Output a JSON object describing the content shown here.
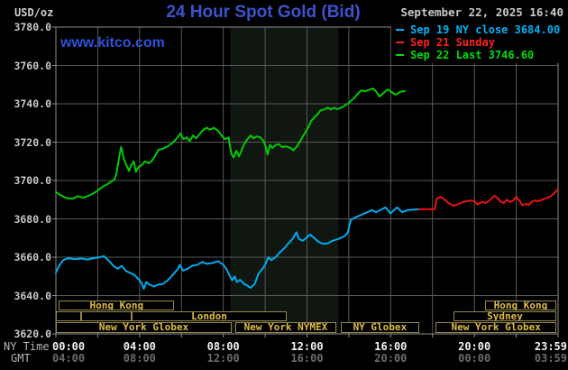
{
  "header": {
    "unit_label": "USD/oz",
    "title": "24 Hour Spot Gold (Bid)",
    "datetime": "September 22, 2025 16:40",
    "watermark": "www.kitco.com",
    "legend": [
      {
        "label": "Sep 19 NY close 3684.00",
        "color": "#00b2f5"
      },
      {
        "label": "Sep 21 Sunday",
        "color": "#ff2020"
      },
      {
        "label": "Sep 22 Last 3746.60",
        "color": "#00dd00"
      }
    ]
  },
  "axes": {
    "ny_caption": "NY Time",
    "gmt_caption": "GMT",
    "ny_ticks": [
      "00:00",
      "04:00",
      "08:00",
      "12:00",
      "16:00",
      "20:00",
      "23:59"
    ],
    "gmt_ticks": [
      "04:00",
      "08:00",
      "12:00",
      "16:00",
      "20:00",
      "00:00",
      "03:59"
    ],
    "tick_hours": [
      0,
      4,
      8,
      12,
      16,
      20,
      24
    ],
    "y_labels": [
      "3780.0",
      "3760.0",
      "3740.0",
      "3720.0",
      "3700.0",
      "3680.0",
      "3660.0",
      "3640.0",
      "3620.0"
    ],
    "y_values": [
      3780,
      3760,
      3740,
      3720,
      3700,
      3680,
      3660,
      3640,
      3620
    ],
    "ny_color": "#f2f2f2",
    "gmt_color": "#6c6c6c"
  },
  "sessions": {
    "border_color": "#96894a",
    "label_color": "#e0bd48",
    "rows": [
      {
        "row": 1,
        "boxes": [
          {
            "start": 0.15,
            "end": 5.65,
            "label": "Hong Kong"
          },
          {
            "start": 20.5,
            "end": 23.92,
            "label": "Hong Kong"
          }
        ]
      },
      {
        "row": 2,
        "boxes": [
          {
            "start": 0,
            "end": 1.2,
            "label": ""
          },
          {
            "start": 1.2,
            "end": 3.62,
            "label": ""
          },
          {
            "start": 3.62,
            "end": 11.03,
            "label": "London"
          },
          {
            "start": 19.0,
            "end": 23.92,
            "label": "Sydney"
          }
        ]
      },
      {
        "row": 3,
        "boxes": [
          {
            "start": 0,
            "end": 8.4,
            "label": "New York Globex"
          },
          {
            "start": 8.57,
            "end": 13.4,
            "label": "New York NYMEX"
          },
          {
            "start": 13.62,
            "end": 17.35,
            "label": "NY Globex"
          },
          {
            "start": 18.15,
            "end": 23.92,
            "label": "New York Globex"
          }
        ]
      }
    ]
  },
  "chart_data": {
    "type": "line",
    "title": "24 Hour Spot Gold (Bid)",
    "ylabel": "USD/oz",
    "ylim": [
      3620,
      3780
    ],
    "y_step": 20,
    "x_hours": [
      0,
      24
    ],
    "grid": true,
    "grid_color": "#5a5a5a",
    "border_color": "#8c8c8c",
    "band": {
      "start_hour": 8.33,
      "end_hour": 13.5,
      "color": "#101610",
      "note": "NYMEX floor session shading"
    },
    "series": [
      {
        "name": "Sep 19 NY close",
        "color": "#00aaee",
        "points": [
          [
            0,
            3652
          ],
          [
            0.15,
            3655.5
          ],
          [
            0.35,
            3658.5
          ],
          [
            0.6,
            3659.5
          ],
          [
            0.9,
            3659
          ],
          [
            1.2,
            3659.3
          ],
          [
            1.5,
            3658.8
          ],
          [
            1.8,
            3659.5
          ],
          [
            2.1,
            3660
          ],
          [
            2.3,
            3660.5
          ],
          [
            2.5,
            3658.5
          ],
          [
            2.75,
            3655.5
          ],
          [
            2.95,
            3654
          ],
          [
            3.15,
            3655.5
          ],
          [
            3.35,
            3652.8
          ],
          [
            3.55,
            3651.8
          ],
          [
            3.75,
            3650.8
          ],
          [
            3.95,
            3648.5
          ],
          [
            4.1,
            3646.5
          ],
          [
            4.2,
            3643.5
          ],
          [
            4.32,
            3647
          ],
          [
            4.5,
            3645.5
          ],
          [
            4.7,
            3644.8
          ],
          [
            4.9,
            3645.8
          ],
          [
            5.1,
            3646
          ],
          [
            5.35,
            3648
          ],
          [
            5.6,
            3651
          ],
          [
            5.8,
            3653.5
          ],
          [
            5.92,
            3656
          ],
          [
            6.08,
            3653
          ],
          [
            6.3,
            3654
          ],
          [
            6.5,
            3655.5
          ],
          [
            6.75,
            3656
          ],
          [
            7.0,
            3657.5
          ],
          [
            7.2,
            3656.5
          ],
          [
            7.5,
            3657
          ],
          [
            7.75,
            3658
          ],
          [
            8.0,
            3656
          ],
          [
            8.15,
            3654
          ],
          [
            8.3,
            3650.5
          ],
          [
            8.42,
            3648
          ],
          [
            8.55,
            3650
          ],
          [
            8.65,
            3647
          ],
          [
            8.8,
            3648.2
          ],
          [
            9.0,
            3646
          ],
          [
            9.15,
            3645.2
          ],
          [
            9.3,
            3644
          ],
          [
            9.5,
            3646
          ],
          [
            9.68,
            3651.5
          ],
          [
            9.85,
            3653.5
          ],
          [
            10.0,
            3656
          ],
          [
            10.15,
            3660
          ],
          [
            10.3,
            3658.5
          ],
          [
            10.5,
            3660
          ],
          [
            10.7,
            3662.5
          ],
          [
            10.9,
            3664.5
          ],
          [
            11.1,
            3667
          ],
          [
            11.3,
            3669.5
          ],
          [
            11.5,
            3673
          ],
          [
            11.62,
            3669.5
          ],
          [
            11.8,
            3668.5
          ],
          [
            12.0,
            3670.5
          ],
          [
            12.15,
            3671.8
          ],
          [
            12.35,
            3670
          ],
          [
            12.55,
            3668
          ],
          [
            12.75,
            3667
          ],
          [
            13.0,
            3667.2
          ],
          [
            13.2,
            3668.5
          ],
          [
            13.5,
            3669.5
          ],
          [
            13.8,
            3671
          ],
          [
            13.95,
            3673
          ],
          [
            14.1,
            3679.5
          ],
          [
            14.4,
            3681.2
          ],
          [
            14.75,
            3682.8
          ],
          [
            15.1,
            3684.5
          ],
          [
            15.3,
            3683.5
          ],
          [
            15.5,
            3684.5
          ],
          [
            15.75,
            3686
          ],
          [
            16.0,
            3682.8
          ],
          [
            16.3,
            3686
          ],
          [
            16.55,
            3683.5
          ],
          [
            16.8,
            3684.5
          ],
          [
            17.1,
            3684.8
          ],
          [
            17.35,
            3685
          ]
        ]
      },
      {
        "name": "Sep 21 Sunday",
        "color": "#e81212",
        "points": [
          [
            17.35,
            3685
          ],
          [
            18.1,
            3685
          ],
          [
            18.2,
            3690.5
          ],
          [
            18.4,
            3691.5
          ],
          [
            18.6,
            3689.8
          ],
          [
            18.8,
            3688
          ],
          [
            19.0,
            3686.8
          ],
          [
            19.2,
            3687.5
          ],
          [
            19.4,
            3688.5
          ],
          [
            19.6,
            3689.2
          ],
          [
            19.8,
            3689.5
          ],
          [
            20.0,
            3689.3
          ],
          [
            20.15,
            3687.5
          ],
          [
            20.35,
            3688.8
          ],
          [
            20.55,
            3688.3
          ],
          [
            20.75,
            3689.8
          ],
          [
            20.95,
            3692
          ],
          [
            21.1,
            3691
          ],
          [
            21.25,
            3689
          ],
          [
            21.4,
            3688.3
          ],
          [
            21.55,
            3690
          ],
          [
            21.7,
            3688.8
          ],
          [
            21.85,
            3689.5
          ],
          [
            22.0,
            3691.5
          ],
          [
            22.15,
            3689.5
          ],
          [
            22.3,
            3687
          ],
          [
            22.45,
            3687.8
          ],
          [
            22.6,
            3687.3
          ],
          [
            22.75,
            3689
          ],
          [
            22.9,
            3689.6
          ],
          [
            23.05,
            3689.2
          ],
          [
            23.2,
            3689.8
          ],
          [
            23.35,
            3690.5
          ],
          [
            23.5,
            3691
          ],
          [
            23.65,
            3691.8
          ],
          [
            23.8,
            3693.2
          ],
          [
            23.98,
            3695.5
          ]
        ]
      },
      {
        "name": "Sep 22 Last",
        "color": "#00cc00",
        "points": [
          [
            0,
            3694
          ],
          [
            0.2,
            3692.5
          ],
          [
            0.5,
            3690.8
          ],
          [
            0.8,
            3690.5
          ],
          [
            1.05,
            3691.8
          ],
          [
            1.3,
            3691
          ],
          [
            1.6,
            3692.2
          ],
          [
            1.9,
            3694
          ],
          [
            2.2,
            3696.5
          ],
          [
            2.45,
            3698
          ],
          [
            2.65,
            3699.5
          ],
          [
            2.8,
            3700.5
          ],
          [
            2.9,
            3704
          ],
          [
            3.05,
            3714
          ],
          [
            3.12,
            3717.5
          ],
          [
            3.25,
            3711
          ],
          [
            3.35,
            3708.5
          ],
          [
            3.5,
            3705
          ],
          [
            3.6,
            3708
          ],
          [
            3.72,
            3710
          ],
          [
            3.82,
            3704.5
          ],
          [
            3.95,
            3707
          ],
          [
            4.1,
            3708
          ],
          [
            4.25,
            3710
          ],
          [
            4.45,
            3709
          ],
          [
            4.6,
            3710.5
          ],
          [
            4.75,
            3713
          ],
          [
            4.9,
            3716
          ],
          [
            5.1,
            3716.5
          ],
          [
            5.3,
            3717.5
          ],
          [
            5.5,
            3719
          ],
          [
            5.7,
            3721
          ],
          [
            5.85,
            3723
          ],
          [
            5.95,
            3724.5
          ],
          [
            6.1,
            3721.5
          ],
          [
            6.25,
            3722.5
          ],
          [
            6.4,
            3720.5
          ],
          [
            6.55,
            3723.5
          ],
          [
            6.7,
            3722
          ],
          [
            6.85,
            3724
          ],
          [
            7.0,
            3726
          ],
          [
            7.2,
            3727.5
          ],
          [
            7.35,
            3726.5
          ],
          [
            7.55,
            3727.5
          ],
          [
            7.75,
            3726
          ],
          [
            7.95,
            3723
          ],
          [
            8.1,
            3721.5
          ],
          [
            8.25,
            3722.5
          ],
          [
            8.38,
            3714
          ],
          [
            8.5,
            3712
          ],
          [
            8.62,
            3715.5
          ],
          [
            8.75,
            3712.5
          ],
          [
            8.88,
            3716
          ],
          [
            9.0,
            3719
          ],
          [
            9.15,
            3721.5
          ],
          [
            9.3,
            3723.5
          ],
          [
            9.45,
            3722
          ],
          [
            9.6,
            3723
          ],
          [
            9.75,
            3722.5
          ],
          [
            9.9,
            3721
          ],
          [
            10.0,
            3718.5
          ],
          [
            10.12,
            3713.5
          ],
          [
            10.22,
            3718.5
          ],
          [
            10.35,
            3717
          ],
          [
            10.5,
            3718.5
          ],
          [
            10.65,
            3719
          ],
          [
            10.8,
            3717.5
          ],
          [
            11.0,
            3717.8
          ],
          [
            11.2,
            3717
          ],
          [
            11.35,
            3715.8
          ],
          [
            11.5,
            3717.5
          ],
          [
            11.65,
            3720
          ],
          [
            11.8,
            3723
          ],
          [
            11.95,
            3725.5
          ],
          [
            12.1,
            3728.5
          ],
          [
            12.2,
            3731
          ],
          [
            12.35,
            3733
          ],
          [
            12.5,
            3734.5
          ],
          [
            12.65,
            3736.5
          ],
          [
            12.8,
            3737
          ],
          [
            13.0,
            3738
          ],
          [
            13.15,
            3737
          ],
          [
            13.3,
            3738
          ],
          [
            13.45,
            3737.2
          ],
          [
            13.6,
            3737.8
          ],
          [
            13.8,
            3739
          ],
          [
            14.0,
            3740.5
          ],
          [
            14.15,
            3742
          ],
          [
            14.3,
            3743.5
          ],
          [
            14.45,
            3745.5
          ],
          [
            14.6,
            3747
          ],
          [
            14.75,
            3746.5
          ],
          [
            14.9,
            3747
          ],
          [
            15.05,
            3747.5
          ],
          [
            15.15,
            3748
          ],
          [
            15.3,
            3746.5
          ],
          [
            15.45,
            3743.8
          ],
          [
            15.55,
            3744.5
          ],
          [
            15.7,
            3746
          ],
          [
            15.85,
            3747.5
          ],
          [
            16.0,
            3746.5
          ],
          [
            16.1,
            3745.5
          ],
          [
            16.25,
            3744.8
          ],
          [
            16.45,
            3746.2
          ],
          [
            16.67,
            3746.6
          ]
        ]
      }
    ]
  }
}
